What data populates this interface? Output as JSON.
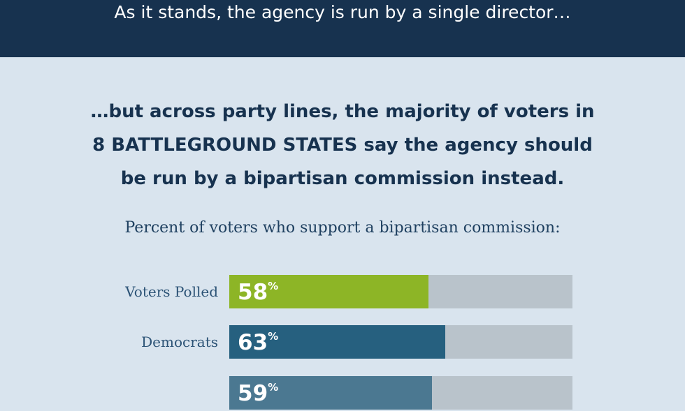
{
  "header": {
    "text": "As it stands, the agency is run by a single director…",
    "bg_color": "#17324f"
  },
  "headline": {
    "line1": "…but across party lines, the majority of voters in",
    "line2_strong": "8 BATTLEGROUND STATES",
    "line2_rest": " say the agency should",
    "line3": "be run by a bipartisan commission instead."
  },
  "chart_data": {
    "type": "bar",
    "orientation": "horizontal",
    "title": "Percent of voters who support a bipartisan commission:",
    "xlim": [
      0,
      100
    ],
    "unit": "%",
    "categories": [
      "Voters Polled",
      "Democrats",
      ""
    ],
    "values": [
      58,
      63,
      59
    ],
    "value_labels": [
      "58",
      "63",
      "59"
    ],
    "colors": [
      "#8db526",
      "#26607f",
      "#4b7891"
    ],
    "track_color": "#b9c3cb"
  }
}
